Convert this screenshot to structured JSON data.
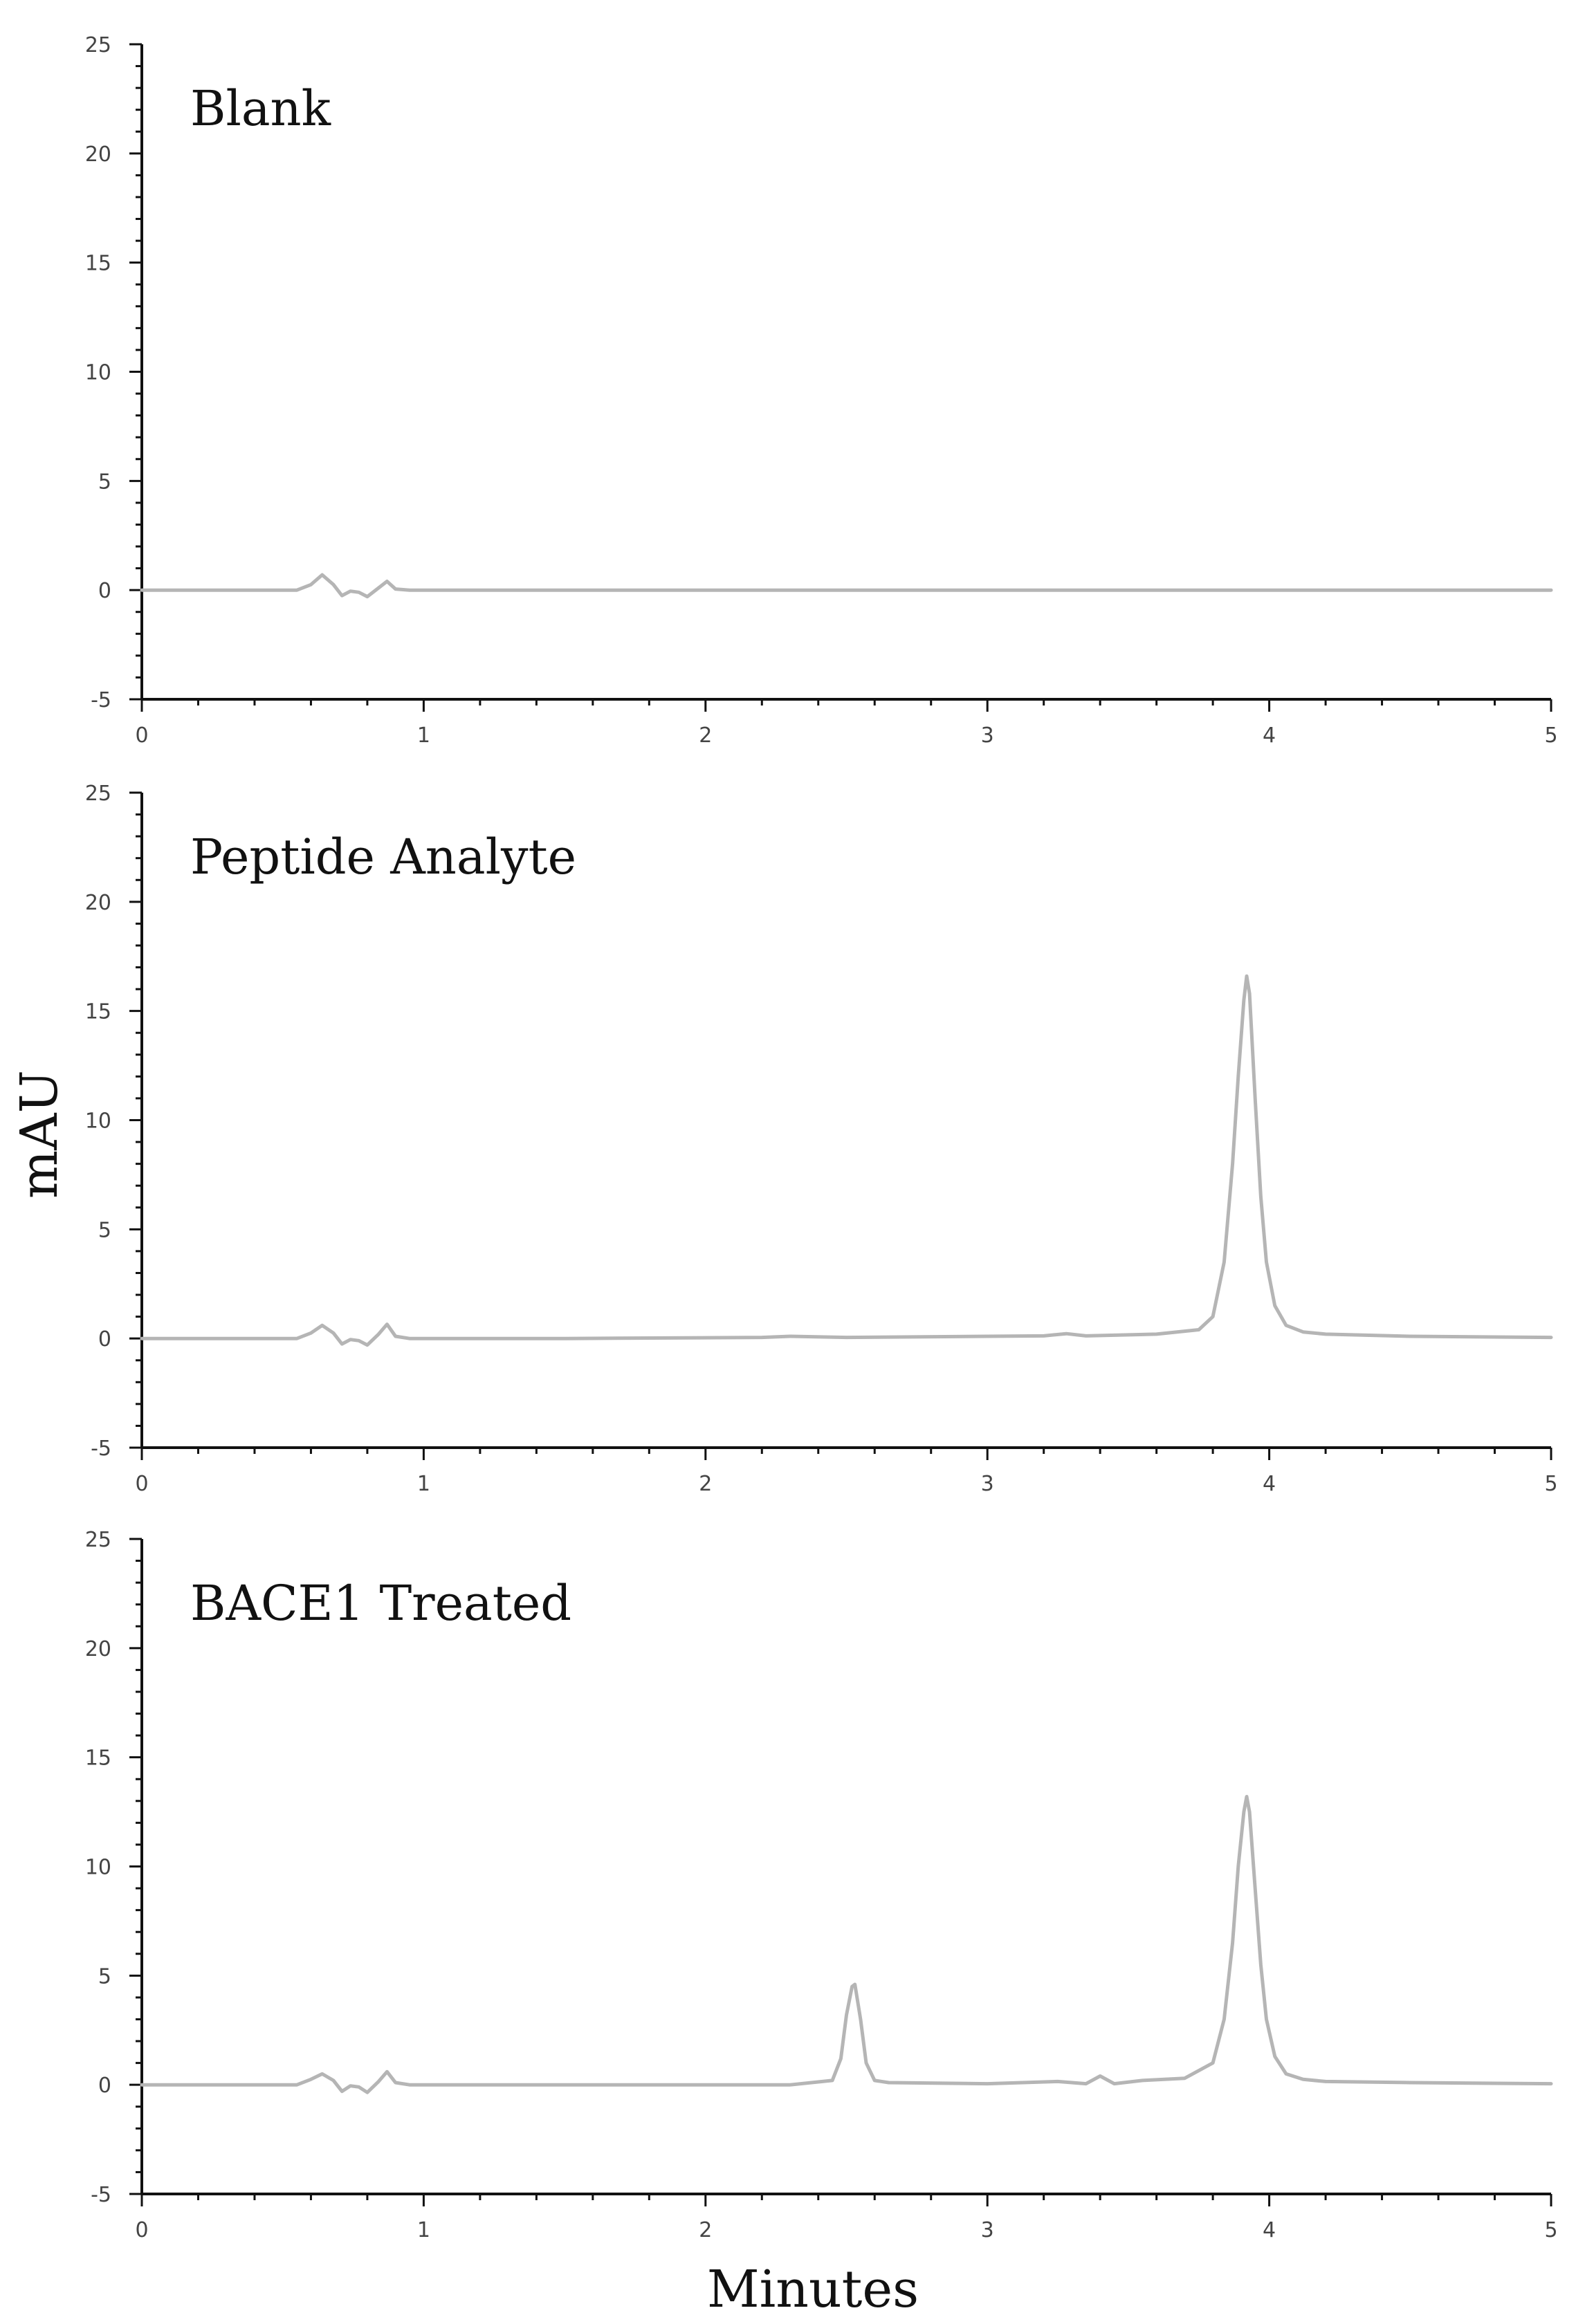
{
  "chart_data": [
    {
      "type": "line",
      "title": "Blank",
      "xlabel": "Minutes",
      "ylabel": "mAU",
      "xlim": [
        0,
        5
      ],
      "ylim": [
        -5,
        25
      ],
      "x_ticks": [
        "0",
        "1",
        "2",
        "3",
        "4",
        "5"
      ],
      "y_ticks": [
        "-5",
        "0",
        "5",
        "10",
        "15",
        "20",
        "25"
      ],
      "series": [
        {
          "x": [
            0,
            0.55,
            0.6,
            0.64,
            0.68,
            0.71,
            0.74,
            0.77,
            0.8,
            0.84,
            0.87,
            0.9,
            0.95,
            1.2,
            2.0,
            3.0,
            4.0,
            5.0
          ],
          "y": [
            0,
            0,
            0.25,
            0.7,
            0.25,
            -0.25,
            -0.05,
            -0.1,
            -0.3,
            0.1,
            0.4,
            0.05,
            0,
            0,
            0,
            0,
            0,
            0
          ]
        }
      ]
    },
    {
      "type": "line",
      "title": "Peptide Analyte",
      "xlabel": "Minutes",
      "ylabel": "mAU",
      "xlim": [
        0,
        5
      ],
      "ylim": [
        -5,
        25
      ],
      "x_ticks": [
        "0",
        "1",
        "2",
        "3",
        "4",
        "5"
      ],
      "y_ticks": [
        "-5",
        "0",
        "5",
        "10",
        "15",
        "20",
        "25"
      ],
      "series": [
        {
          "x": [
            0,
            0.55,
            0.6,
            0.64,
            0.68,
            0.71,
            0.74,
            0.77,
            0.8,
            0.84,
            0.87,
            0.9,
            0.95,
            1.5,
            2.2,
            2.3,
            2.5,
            3.0,
            3.2,
            3.28,
            3.35,
            3.6,
            3.75,
            3.8,
            3.84,
            3.87,
            3.89,
            3.91,
            3.92,
            3.93,
            3.95,
            3.97,
            3.99,
            4.02,
            4.06,
            4.12,
            4.2,
            4.5,
            5.0
          ],
          "y": [
            0,
            0,
            0.25,
            0.6,
            0.25,
            -0.25,
            -0.05,
            -0.1,
            -0.3,
            0.2,
            0.65,
            0.1,
            0,
            0,
            0.05,
            0.1,
            0.05,
            0.1,
            0.12,
            0.22,
            0.12,
            0.2,
            0.4,
            1.0,
            3.5,
            8.0,
            12.0,
            15.5,
            16.6,
            15.8,
            11.0,
            6.5,
            3.5,
            1.5,
            0.6,
            0.3,
            0.2,
            0.1,
            0.05
          ]
        }
      ]
    },
    {
      "type": "line",
      "title": "BACE1 Treated",
      "xlabel": "Minutes",
      "ylabel": "mAU",
      "xlim": [
        0,
        5
      ],
      "ylim": [
        -5,
        25
      ],
      "x_ticks": [
        "0",
        "1",
        "2",
        "3",
        "4",
        "5"
      ],
      "y_ticks": [
        "-5",
        "0",
        "5",
        "10",
        "15",
        "20",
        "25"
      ],
      "series": [
        {
          "x": [
            0,
            0.55,
            0.6,
            0.64,
            0.68,
            0.71,
            0.74,
            0.77,
            0.8,
            0.84,
            0.87,
            0.9,
            0.95,
            1.5,
            2.3,
            2.45,
            2.48,
            2.5,
            2.52,
            2.53,
            2.55,
            2.57,
            2.6,
            2.65,
            3.0,
            3.25,
            3.35,
            3.4,
            3.45,
            3.55,
            3.7,
            3.8,
            3.84,
            3.87,
            3.89,
            3.91,
            3.92,
            3.93,
            3.95,
            3.97,
            3.99,
            4.02,
            4.06,
            4.12,
            4.2,
            4.5,
            5.0
          ],
          "y": [
            0,
            0,
            0.25,
            0.5,
            0.2,
            -0.3,
            -0.05,
            -0.1,
            -0.35,
            0.15,
            0.6,
            0.1,
            0,
            0,
            0,
            0.2,
            1.2,
            3.2,
            4.5,
            4.6,
            3.0,
            1.0,
            0.2,
            0.1,
            0.05,
            0.15,
            0.05,
            0.4,
            0.05,
            0.2,
            0.3,
            1.0,
            3.0,
            6.5,
            10.0,
            12.5,
            13.2,
            12.5,
            9.0,
            5.5,
            3.0,
            1.3,
            0.5,
            0.25,
            0.15,
            0.1,
            0.05
          ]
        }
      ]
    }
  ]
}
